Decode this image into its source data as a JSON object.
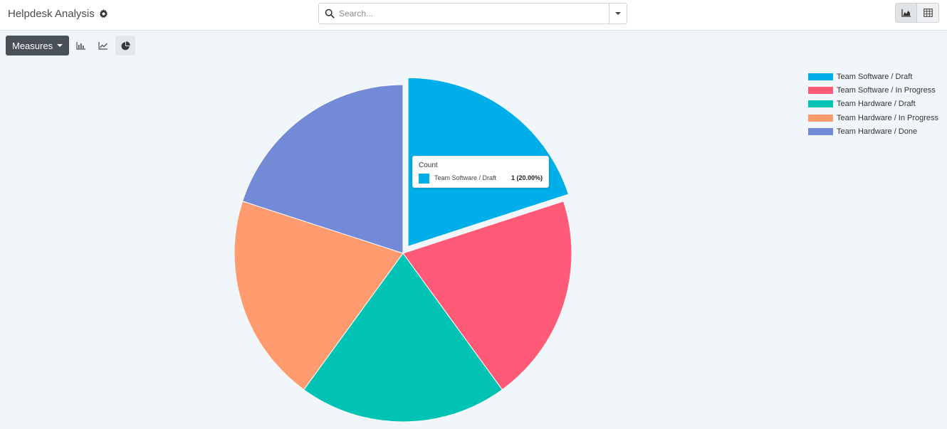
{
  "header": {
    "title": "Helpdesk Analysis",
    "settings_icon": "gear-icon"
  },
  "search": {
    "placeholder": "Search...",
    "value": "",
    "icon": "search-icon",
    "toggle_icon": "caret-down-icon"
  },
  "view_switcher": [
    {
      "name": "graph-view-button",
      "icon": "area-chart-icon",
      "active": true
    },
    {
      "name": "pivot-view-button",
      "icon": "table-icon",
      "active": false
    }
  ],
  "toolbar": {
    "measures_label": "Measures",
    "chart_modes": [
      {
        "name": "bar-chart-button",
        "icon": "bar-chart-icon",
        "active": false
      },
      {
        "name": "line-chart-button",
        "icon": "line-chart-icon",
        "active": false
      },
      {
        "name": "pie-chart-button",
        "icon": "pie-chart-icon",
        "active": true
      }
    ]
  },
  "chart_data": {
    "type": "pie",
    "measure": "Count",
    "labels": [
      "Team Software / Draft",
      "Team Software / In Progress",
      "Team Hardware / Draft",
      "Team Hardware / In Progress",
      "Team Hardware / Done"
    ],
    "values": [
      1,
      1,
      1,
      1,
      1
    ],
    "colors": [
      "#00aee9",
      "#ff5b78",
      "#00c3b3",
      "#ff9b6f",
      "#738ad6"
    ],
    "highlighted_index": 0,
    "legend_position": "top-right"
  },
  "tooltip": {
    "title": "Count",
    "label": "Team Software / Draft",
    "value": "1 (20.00%)"
  }
}
